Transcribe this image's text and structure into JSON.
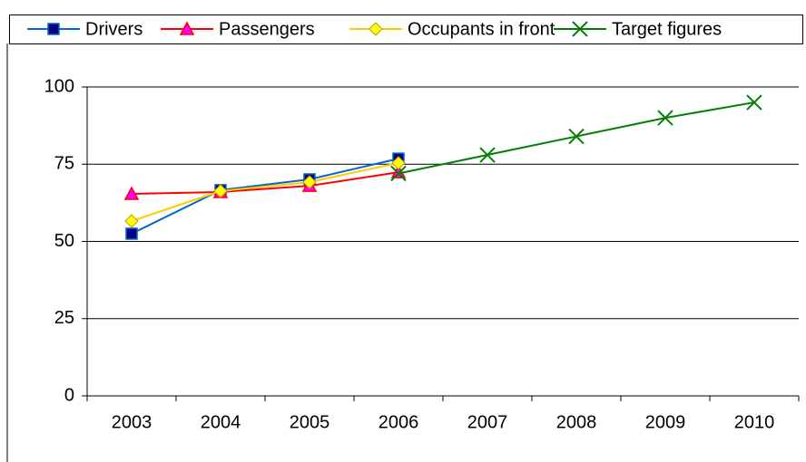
{
  "chart_data": {
    "type": "line",
    "categories": [
      "2003",
      "2004",
      "2005",
      "2006",
      "2007",
      "2008",
      "2009",
      "2010"
    ],
    "series": [
      {
        "name": "Drivers",
        "color": "#0066cc",
        "marker": "square",
        "marker_fill": "#000080",
        "values": [
          52.5,
          66.6,
          70.1,
          76.8,
          null,
          null,
          null,
          null
        ]
      },
      {
        "name": "Passengers",
        "color": "#ff0000",
        "marker": "triangle",
        "marker_fill": "#ff00ff",
        "values": [
          65.4,
          66,
          68,
          72.4,
          null,
          null,
          null,
          null
        ]
      },
      {
        "name": "Occupants in front",
        "color": "#ffcc00",
        "marker": "diamond",
        "marker_fill": "#ffff00",
        "values": [
          56.6,
          66.3,
          69.2,
          75.4,
          null,
          null,
          null,
          null
        ]
      },
      {
        "name": "Target figures",
        "color": "#008000",
        "marker": "x",
        "marker_fill": "#008000",
        "values": [
          null,
          null,
          null,
          72,
          78,
          84,
          90,
          95
        ]
      }
    ],
    "ylim": [
      0,
      100
    ],
    "yticks": [
      0,
      25,
      50,
      75,
      100
    ],
    "grid": true,
    "legend": "top"
  }
}
